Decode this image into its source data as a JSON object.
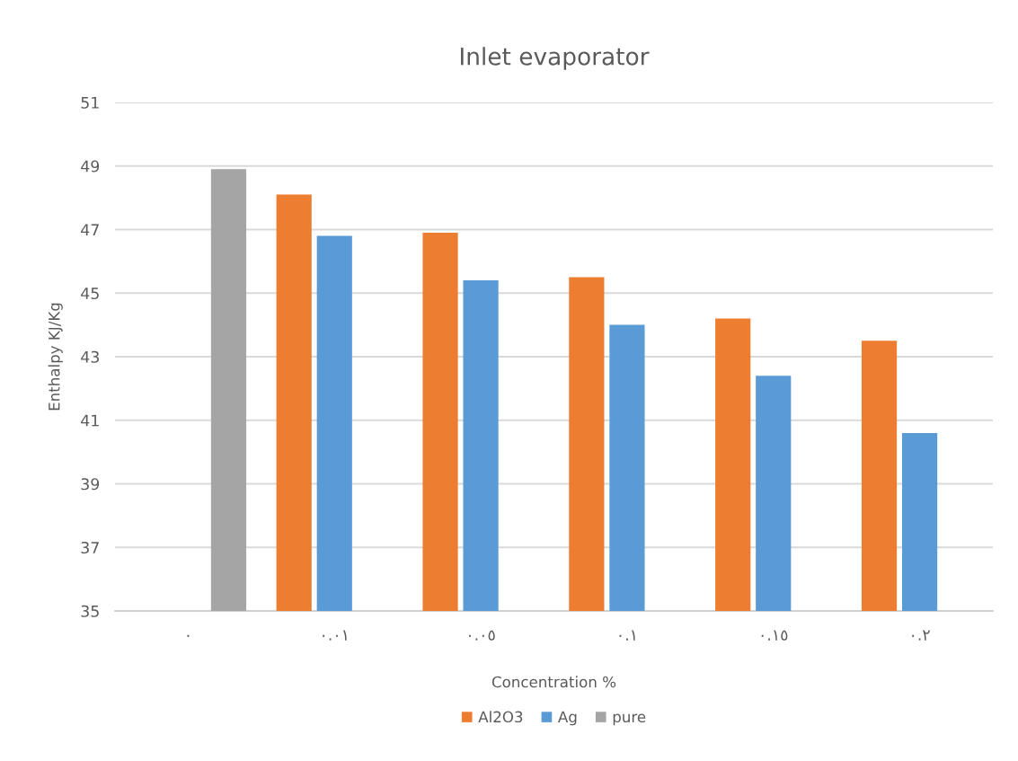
{
  "chart_data": {
    "type": "bar",
    "title": "Inlet evaporator",
    "xlabel": "Concentration %",
    "ylabel": "Enthalpy KJ/Kg",
    "categories": [
      "٠",
      "٠.٠١",
      "٠.٠٥",
      "٠.١",
      "٠.١٥",
      "٠.٢"
    ],
    "series": [
      {
        "name": "Al2O3",
        "color": "#ed7d31",
        "values": [
          null,
          48.1,
          46.9,
          45.5,
          44.2,
          43.5
        ]
      },
      {
        "name": "Ag",
        "color": "#5b9bd5",
        "values": [
          null,
          46.8,
          45.4,
          44.0,
          42.4,
          40.6
        ]
      },
      {
        "name": "pure",
        "color": "#a5a5a5",
        "values": [
          48.9,
          null,
          null,
          null,
          null,
          null
        ]
      }
    ],
    "ylim": [
      35,
      51
    ],
    "yticks": [
      35,
      37,
      39,
      41,
      43,
      45,
      47,
      49,
      51
    ],
    "grid": "y",
    "legend": "bottom"
  }
}
